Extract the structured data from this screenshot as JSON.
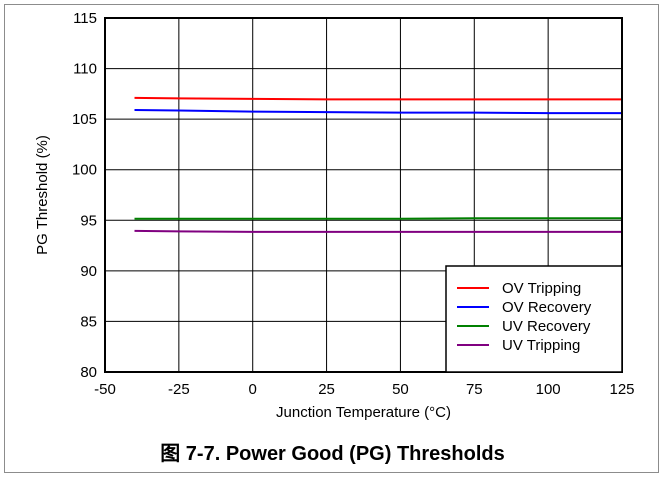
{
  "caption": "图 7-7. Power Good (PG) Thresholds",
  "chart_data": {
    "type": "line",
    "title": "",
    "xlabel": "Junction Temperature (°C)",
    "ylabel": "PG Threshold (%)",
    "xlim": [
      -50,
      125
    ],
    "ylim": [
      80,
      115
    ],
    "xticks": [
      -50,
      -25,
      0,
      25,
      50,
      75,
      100,
      125
    ],
    "yticks": [
      80,
      85,
      90,
      95,
      100,
      105,
      110,
      115
    ],
    "grid": true,
    "legend_position": "bottom-right",
    "series": [
      {
        "name": "OV Tripping",
        "color": "#ff0000",
        "x": [
          -40,
          -25,
          0,
          25,
          50,
          75,
          100,
          125
        ],
        "y": [
          107.1,
          107.05,
          107.0,
          106.95,
          106.95,
          106.95,
          106.95,
          106.95
        ]
      },
      {
        "name": "OV Recovery",
        "color": "#0000ff",
        "x": [
          -40,
          -25,
          0,
          25,
          50,
          75,
          100,
          125
        ],
        "y": [
          105.9,
          105.85,
          105.75,
          105.7,
          105.65,
          105.65,
          105.6,
          105.6
        ]
      },
      {
        "name": "UV Recovery",
        "color": "#008000",
        "x": [
          -40,
          -25,
          0,
          25,
          50,
          75,
          100,
          125
        ],
        "y": [
          95.15,
          95.15,
          95.15,
          95.15,
          95.15,
          95.2,
          95.2,
          95.2
        ]
      },
      {
        "name": "UV Tripping",
        "color": "#800080",
        "x": [
          -40,
          -25,
          0,
          25,
          50,
          75,
          100,
          125
        ],
        "y": [
          93.95,
          93.9,
          93.85,
          93.85,
          93.85,
          93.85,
          93.85,
          93.85
        ]
      }
    ]
  }
}
